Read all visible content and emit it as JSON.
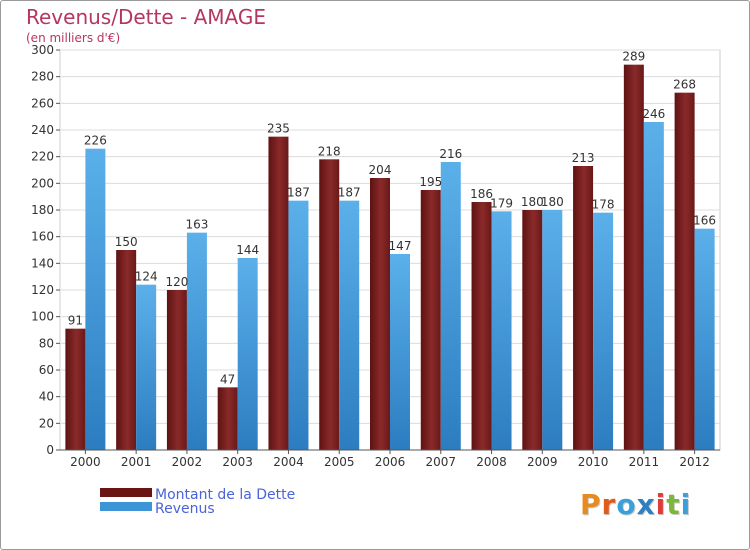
{
  "colors": {
    "debt": "#7a1e1e",
    "revenue": "#3d95d8",
    "title": "#b5365f",
    "legend_text": "#4a63d8"
  },
  "logo": {
    "text": "Proxiti",
    "letter_colors": [
      "#e88a1e",
      "#e05a1a",
      "#3aa0d8",
      "#2f7fc1",
      "#e03a3a",
      "#7ab83a",
      "#3aa0d8"
    ]
  },
  "chart_data": {
    "type": "bar",
    "title": "Revenus/Dette - AMAGE",
    "subtitle": "(en milliers d'€)",
    "categories": [
      "2000",
      "2001",
      "2002",
      "2003",
      "2004",
      "2005",
      "2006",
      "2007",
      "2008",
      "2009",
      "2010",
      "2011",
      "2012"
    ],
    "series": [
      {
        "name": "Montant de la Dette",
        "color": "#7a1e1e",
        "values": [
          91,
          150,
          120,
          47,
          235,
          218,
          204,
          195,
          186,
          180,
          213,
          289,
          268
        ]
      },
      {
        "name": "Revenus",
        "color": "#3d95d8",
        "values": [
          226,
          124,
          163,
          144,
          187,
          187,
          147,
          216,
          179,
          180,
          178,
          246,
          166
        ]
      }
    ],
    "ylim": [
      0,
      300
    ],
    "yticks": [
      0,
      20,
      40,
      60,
      80,
      100,
      120,
      140,
      160,
      180,
      200,
      220,
      240,
      260,
      280,
      300
    ],
    "grid": true,
    "legend": "bottom-left",
    "data_labels": true
  }
}
